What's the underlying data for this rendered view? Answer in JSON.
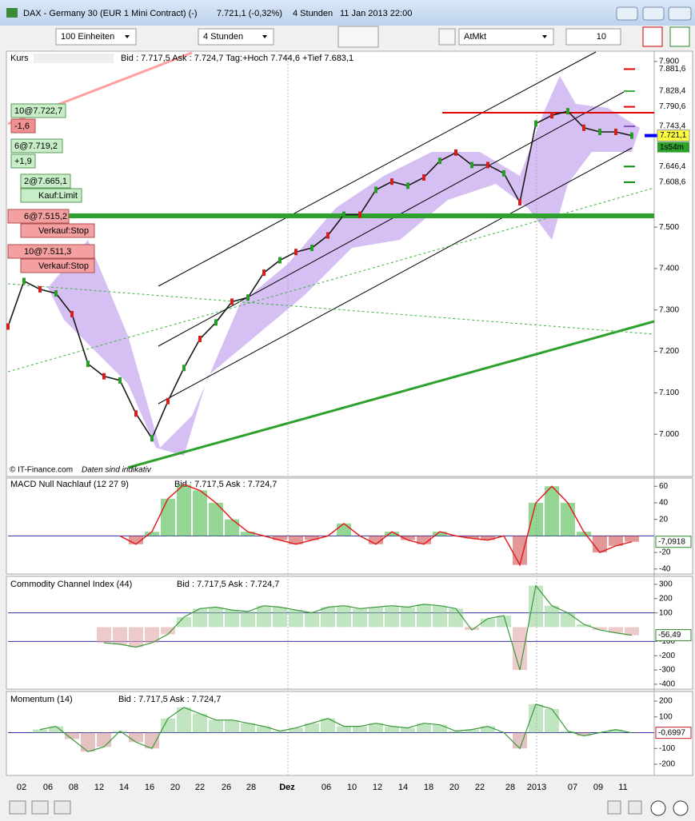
{
  "window": {
    "title": "DAX - Germany 30 (EUR 1 Mini Contract) (-)",
    "price": "7.721,1 (-0,32%)",
    "interval": "4 Stunden",
    "datetime": "11 Jan 2013 22:00"
  },
  "toolbar": {
    "units": "100 Einheiten",
    "interval": "4 Stunden",
    "order_type": "AtMkt",
    "quantity": "10"
  },
  "price_panel": {
    "label": "Kurs",
    "quote": "Bid : 7.717,5 Ask : 7.724,7 Tag:+Hoch 7.744,6 +Tief 7.683,1",
    "copyright": "© IT-Finance.com",
    "disclaimer": "Daten sind indikativ",
    "ylim": [
      6900,
      7923
    ],
    "yticks": [
      {
        "value": 7900,
        "label": "7.900"
      },
      {
        "value": 7500,
        "label": "7.500"
      },
      {
        "value": 7400,
        "label": "7.400"
      },
      {
        "value": 7300,
        "label": "7.300"
      },
      {
        "value": 7200,
        "label": "7.200"
      },
      {
        "value": 7100,
        "label": "7.100"
      },
      {
        "value": 7000,
        "label": "7.000"
      }
    ],
    "close": [
      7260,
      7370,
      7350,
      7340,
      7290,
      7170,
      7140,
      7130,
      7050,
      6990,
      7080,
      7160,
      7230,
      7270,
      7320,
      7330,
      7390,
      7420,
      7440,
      7450,
      7480,
      7530,
      7530,
      7590,
      7610,
      7600,
      7620,
      7660,
      7680,
      7650,
      7650,
      7630,
      7560,
      7750,
      7770,
      7780,
      7740,
      7730,
      7730,
      7721
    ],
    "levels": [
      {
        "value": 7881.6,
        "label": "7.881,6",
        "color": "#e00000"
      },
      {
        "value": 7828.4,
        "label": "7.828,4",
        "color": "#3cb43c"
      },
      {
        "value": 7790.6,
        "label": "7.790,6",
        "color": "#e00000"
      },
      {
        "value": 7743.4,
        "label": "7.743,4",
        "color": "#8a4fc8"
      },
      {
        "value": 7646.4,
        "label": "7.646,4",
        "color": "#0a8a0a"
      },
      {
        "value": 7608.6,
        "label": "7.608,6",
        "color": "#0a8a0a"
      }
    ],
    "current": {
      "value": 7721.1,
      "label": "7.721,1"
    },
    "countdown": "1s54m",
    "orders": [
      {
        "label": "10@7.722,7",
        "detail": "-1,6"
      },
      {
        "label": "6@7.719,2",
        "detail": "+1,9"
      },
      {
        "label": "2@7.665,1",
        "detail": "Kauf:Limit"
      },
      {
        "label": "6@7.515,2",
        "detail": "Verkauf:Stop"
      },
      {
        "label": "10@7.511,3",
        "detail": "Verkauf:Stop"
      }
    ]
  },
  "macd_panel": {
    "title": "MACD Null Nachlauf (12 27 9)",
    "quote": "Bid : 7.717,5 Ask : 7.724,7",
    "ylim": [
      -46,
      68
    ],
    "yticks": [
      60,
      40,
      20,
      -20,
      -40
    ],
    "values": [
      null,
      null,
      null,
      null,
      null,
      null,
      null,
      0,
      -10,
      5,
      45,
      62,
      55,
      40,
      20,
      5,
      0,
      -5,
      -10,
      -5,
      0,
      15,
      0,
      -10,
      5,
      -5,
      -10,
      5,
      0,
      -3,
      -5,
      0,
      -35,
      40,
      60,
      40,
      5,
      -20,
      -12,
      -7.0918
    ],
    "value_label": "-7,0918"
  },
  "cci_panel": {
    "title": "Commodity Channel Index (44)",
    "quote": "Bid : 7.717,5 Ask : 7.724,7",
    "ylim": [
      -434,
      350
    ],
    "yticks": [
      300,
      200,
      100,
      -100,
      -200,
      -300,
      -400
    ],
    "values": [
      null,
      null,
      null,
      null,
      null,
      null,
      -110,
      -120,
      -140,
      -110,
      -50,
      70,
      130,
      140,
      120,
      110,
      150,
      140,
      120,
      100,
      140,
      150,
      130,
      140,
      150,
      140,
      160,
      150,
      130,
      -20,
      60,
      80,
      -300,
      290,
      150,
      100,
      20,
      -20,
      -40,
      -56.49
    ],
    "value_label": "-56,49"
  },
  "momentum_panel": {
    "title": "Momentum (14)",
    "quote": "Bid : 7.717,5 Ask : 7.724,7",
    "ylim": [
      -271,
      256
    ],
    "yticks": [
      200,
      100,
      -100,
      -200
    ],
    "values": [
      null,
      null,
      20,
      40,
      -40,
      -120,
      -90,
      10,
      -60,
      -100,
      90,
      160,
      120,
      80,
      80,
      60,
      40,
      10,
      30,
      60,
      90,
      40,
      40,
      60,
      40,
      30,
      60,
      50,
      10,
      20,
      40,
      0,
      -100,
      180,
      150,
      10,
      -20,
      0,
      20,
      -0.6997
    ],
    "value_label": "-0,6997"
  },
  "x_axis": {
    "labels": [
      "02",
      "06",
      "08",
      "12",
      "14",
      "16",
      "20",
      "22",
      "26",
      "28",
      "Dez",
      "06",
      "10",
      "12",
      "14",
      "18",
      "20",
      "22",
      "28",
      "2013",
      "07",
      "09",
      "11"
    ]
  }
}
